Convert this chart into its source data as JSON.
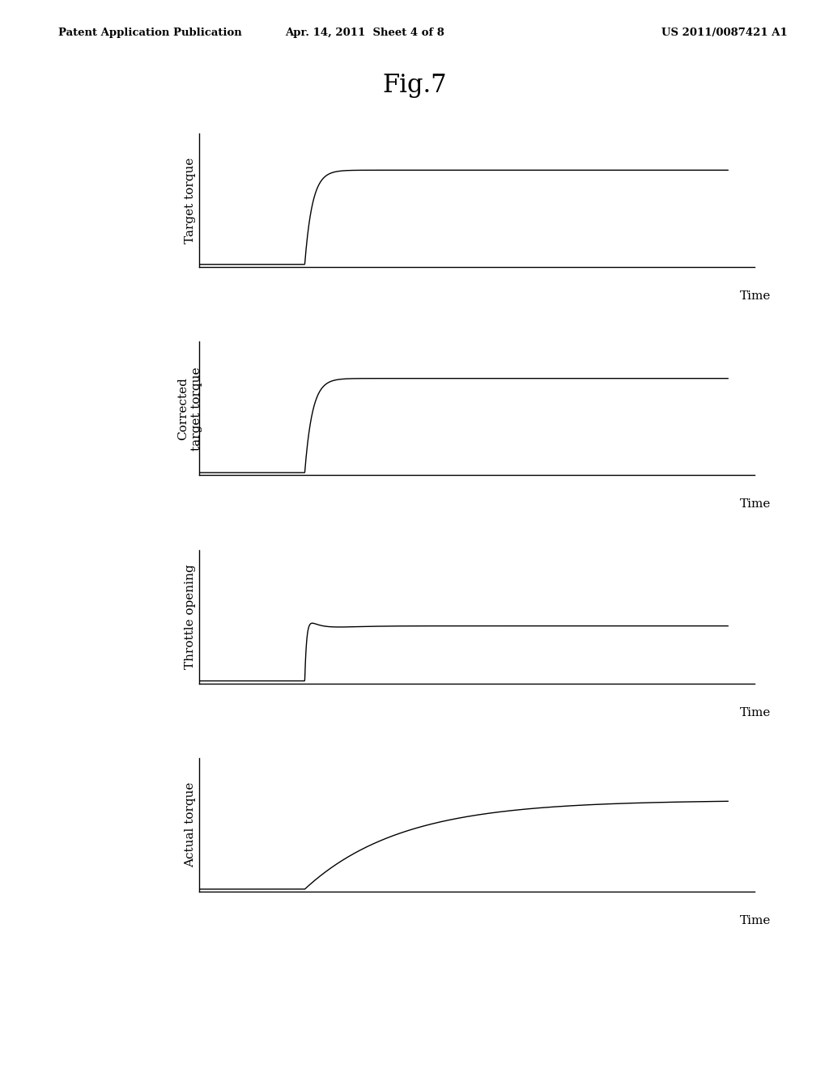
{
  "title": "Fig.7",
  "header_left": "Patent Application Publication",
  "header_center": "Apr. 14, 2011  Sheet 4 of 8",
  "header_right": "US 2011/0087421 A1",
  "subplots": [
    {
      "ylabel": "Target torque",
      "time_label": "Time",
      "curve_type": "fast_step"
    },
    {
      "ylabel": "Corrected\ntarget torque",
      "time_label": "Time",
      "curve_type": "fast_step"
    },
    {
      "ylabel": "Throttle opening",
      "time_label": "Time",
      "curve_type": "overshoot_step"
    },
    {
      "ylabel": "Actual torque",
      "time_label": "Time",
      "curve_type": "slow_step"
    }
  ],
  "background_color": "#ffffff",
  "line_color": "#000000",
  "axis_color": "#000000",
  "text_color": "#000000",
  "header_fontsize": 9.5,
  "title_fontsize": 22,
  "ylabel_fontsize": 11,
  "time_fontsize": 11
}
